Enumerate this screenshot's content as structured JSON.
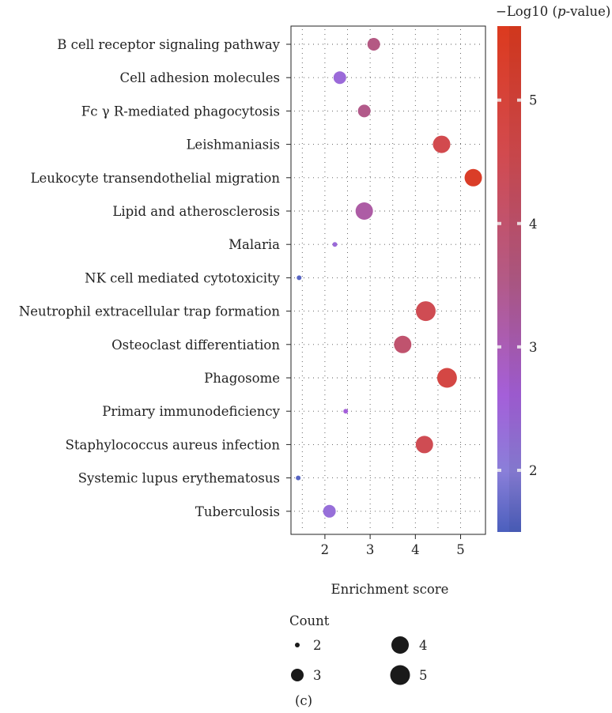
{
  "chart_data": {
    "type": "scatter",
    "xlabel": "Enrichment score",
    "xlim": [
      1.25,
      5.55
    ],
    "x_ticks": [
      "2",
      "3",
      "4",
      "5"
    ],
    "x_tick_values": [
      2,
      3,
      4,
      5
    ],
    "categories": [
      "B cell receptor signaling pathway",
      "Cell adhesion molecules",
      "Fc γ R-mediated phagocytosis",
      "Leishmaniasis",
      "Leukocyte transendothelial migration",
      "Lipid and atherosclerosis",
      "Malaria",
      "NK cell mediated cytotoxicity",
      "Neutrophil extracellular trap formation",
      "Osteoclast differentiation",
      "Phagosome",
      "Primary immunodeficiency",
      "Staphylococcus aureus infection",
      "Systemic lupus erythematosus",
      "Tuberculosis"
    ],
    "points": [
      {
        "term": "B cell receptor signaling pathway",
        "x": 3.08,
        "count": 3,
        "neg_log10_p": 3.6
      },
      {
        "term": "Cell adhesion molecules",
        "x": 2.33,
        "count": 3,
        "neg_log10_p": 2.4
      },
      {
        "term": "Fc γ R-mediated phagocytosis",
        "x": 2.87,
        "count": 3,
        "neg_log10_p": 3.5
      },
      {
        "term": "Leishmaniasis",
        "x": 4.58,
        "count": 4,
        "neg_log10_p": 4.6
      },
      {
        "term": "Leukocyte transendothelial migration",
        "x": 5.28,
        "count": 4,
        "neg_log10_p": 5.4
      },
      {
        "term": "Lipid and atherosclerosis",
        "x": 2.87,
        "count": 4,
        "neg_log10_p": 3.2
      },
      {
        "term": "Malaria",
        "x": 2.22,
        "count": 2,
        "neg_log10_p": 2.4
      },
      {
        "term": "NK cell mediated cytotoxicity",
        "x": 1.43,
        "count": 2,
        "neg_log10_p": 1.6
      },
      {
        "term": "Neutrophil extracellular trap formation",
        "x": 4.23,
        "count": 5,
        "neg_log10_p": 4.5
      },
      {
        "term": "Osteoclast differentiation",
        "x": 3.72,
        "count": 4,
        "neg_log10_p": 4.0
      },
      {
        "term": "Phagosome",
        "x": 4.7,
        "count": 5,
        "neg_log10_p": 4.8
      },
      {
        "term": "Primary immunodeficiency",
        "x": 2.46,
        "count": 2,
        "neg_log10_p": 2.6
      },
      {
        "term": "Staphylococcus aureus infection",
        "x": 4.2,
        "count": 4,
        "neg_log10_p": 4.5
      },
      {
        "term": "Systemic lupus erythematosus",
        "x": 1.41,
        "count": 2,
        "neg_log10_p": 1.6
      },
      {
        "term": "Tuberculosis",
        "x": 2.1,
        "count": 3,
        "neg_log10_p": 2.3
      }
    ],
    "colorbar": {
      "title": "−Log10 (p-value)",
      "title_main": "−Log10 (",
      "title_italic": "p",
      "title_end": "-value)",
      "range": [
        1.5,
        5.6
      ],
      "ticks": [
        2,
        3,
        4,
        5
      ],
      "tick_labels": [
        "2",
        "3",
        "4",
        "5"
      ],
      "colors": [
        "#4b5fbd",
        "#a45fd9",
        "#b35a86",
        "#d9413a",
        "#dc3a1e"
      ]
    },
    "size_legend": {
      "title": "Count",
      "items": [
        {
          "count": 2,
          "label": "2"
        },
        {
          "count": 4,
          "label": "4"
        },
        {
          "count": 3,
          "label": "3"
        },
        {
          "count": 5,
          "label": "5"
        }
      ]
    },
    "grid": true,
    "panel_label": "(c)"
  }
}
